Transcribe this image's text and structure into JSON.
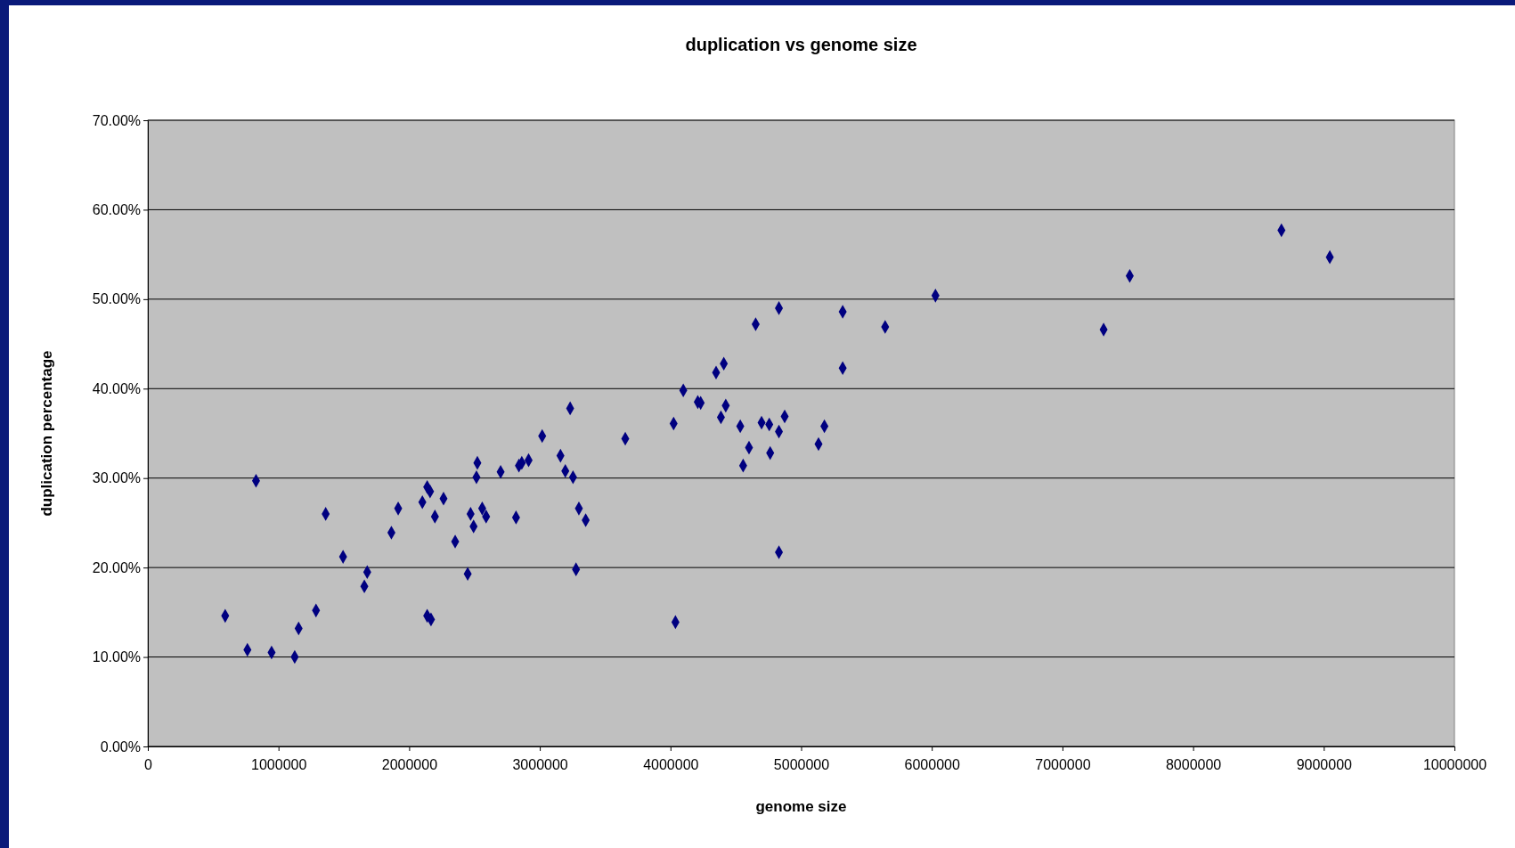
{
  "chart_data": {
    "type": "scatter",
    "title": "duplication vs genome size",
    "xlabel": "genome size",
    "ylabel": "duplication percentage",
    "x": [
      592000,
      762000,
      828000,
      947000,
      1124000,
      1154000,
      1287000,
      1361000,
      1494000,
      1657000,
      1679000,
      1864000,
      1916000,
      2101000,
      2138000,
      2160000,
      2138000,
      2167000,
      2197000,
      2263000,
      2352000,
      2448000,
      2470000,
      2493000,
      2515000,
      2522000,
      2559000,
      2589000,
      2700000,
      2818000,
      2840000,
      2862000,
      2914000,
      3018000,
      3158000,
      3195000,
      3232000,
      3254000,
      3277000,
      3299000,
      3351000,
      3654000,
      4024000,
      4038000,
      4098000,
      4209000,
      4231000,
      4349000,
      4408000,
      4386000,
      4423000,
      4534000,
      4556000,
      4601000,
      4652000,
      4697000,
      4756000,
      4763000,
      4830000,
      4830000,
      4830000,
      4874000,
      5133000,
      5178000,
      5318000,
      5318000,
      5643000,
      6028000,
      7315000,
      7515000,
      8676000,
      9046000
    ],
    "series": [
      {
        "color": "#000080",
        "values": [
          14.6,
          10.8,
          29.7,
          10.5,
          10.0,
          13.2,
          15.2,
          26.0,
          21.2,
          17.9,
          19.5,
          23.9,
          26.6,
          27.3,
          29.0,
          28.5,
          14.6,
          14.2,
          25.7,
          27.7,
          22.9,
          19.3,
          26.0,
          24.6,
          30.1,
          31.7,
          26.6,
          25.7,
          30.7,
          25.6,
          31.4,
          31.7,
          32.0,
          34.7,
          32.5,
          30.8,
          37.8,
          30.1,
          19.8,
          26.6,
          25.3,
          34.4,
          36.1,
          13.9,
          39.8,
          38.5,
          38.4,
          41.8,
          42.8,
          36.8,
          38.1,
          35.8,
          31.4,
          33.4,
          47.2,
          36.2,
          36.0,
          32.8,
          49.0,
          35.2,
          21.7,
          36.9,
          33.8,
          35.8,
          48.6,
          42.3,
          46.9,
          50.4,
          46.6,
          52.6,
          57.7,
          54.7
        ]
      }
    ],
    "xlim": [
      0,
      10000000
    ],
    "xticks": [
      0,
      1000000,
      2000000,
      3000000,
      4000000,
      5000000,
      6000000,
      7000000,
      8000000,
      9000000,
      10000000
    ],
    "ylim": [
      0,
      70
    ],
    "yticks": [
      {
        "value": 0,
        "label": "0.00%"
      },
      {
        "value": 10,
        "label": "10.00%"
      },
      {
        "value": 20,
        "label": "20.00%"
      },
      {
        "value": 30,
        "label": "30.00%"
      },
      {
        "value": 40,
        "label": "40.00%"
      },
      {
        "value": 50,
        "label": "50.00%"
      },
      {
        "value": 60,
        "label": "60.00%"
      },
      {
        "value": 70,
        "label": "70.00%"
      }
    ],
    "grid": "y",
    "marker": "diamond"
  }
}
